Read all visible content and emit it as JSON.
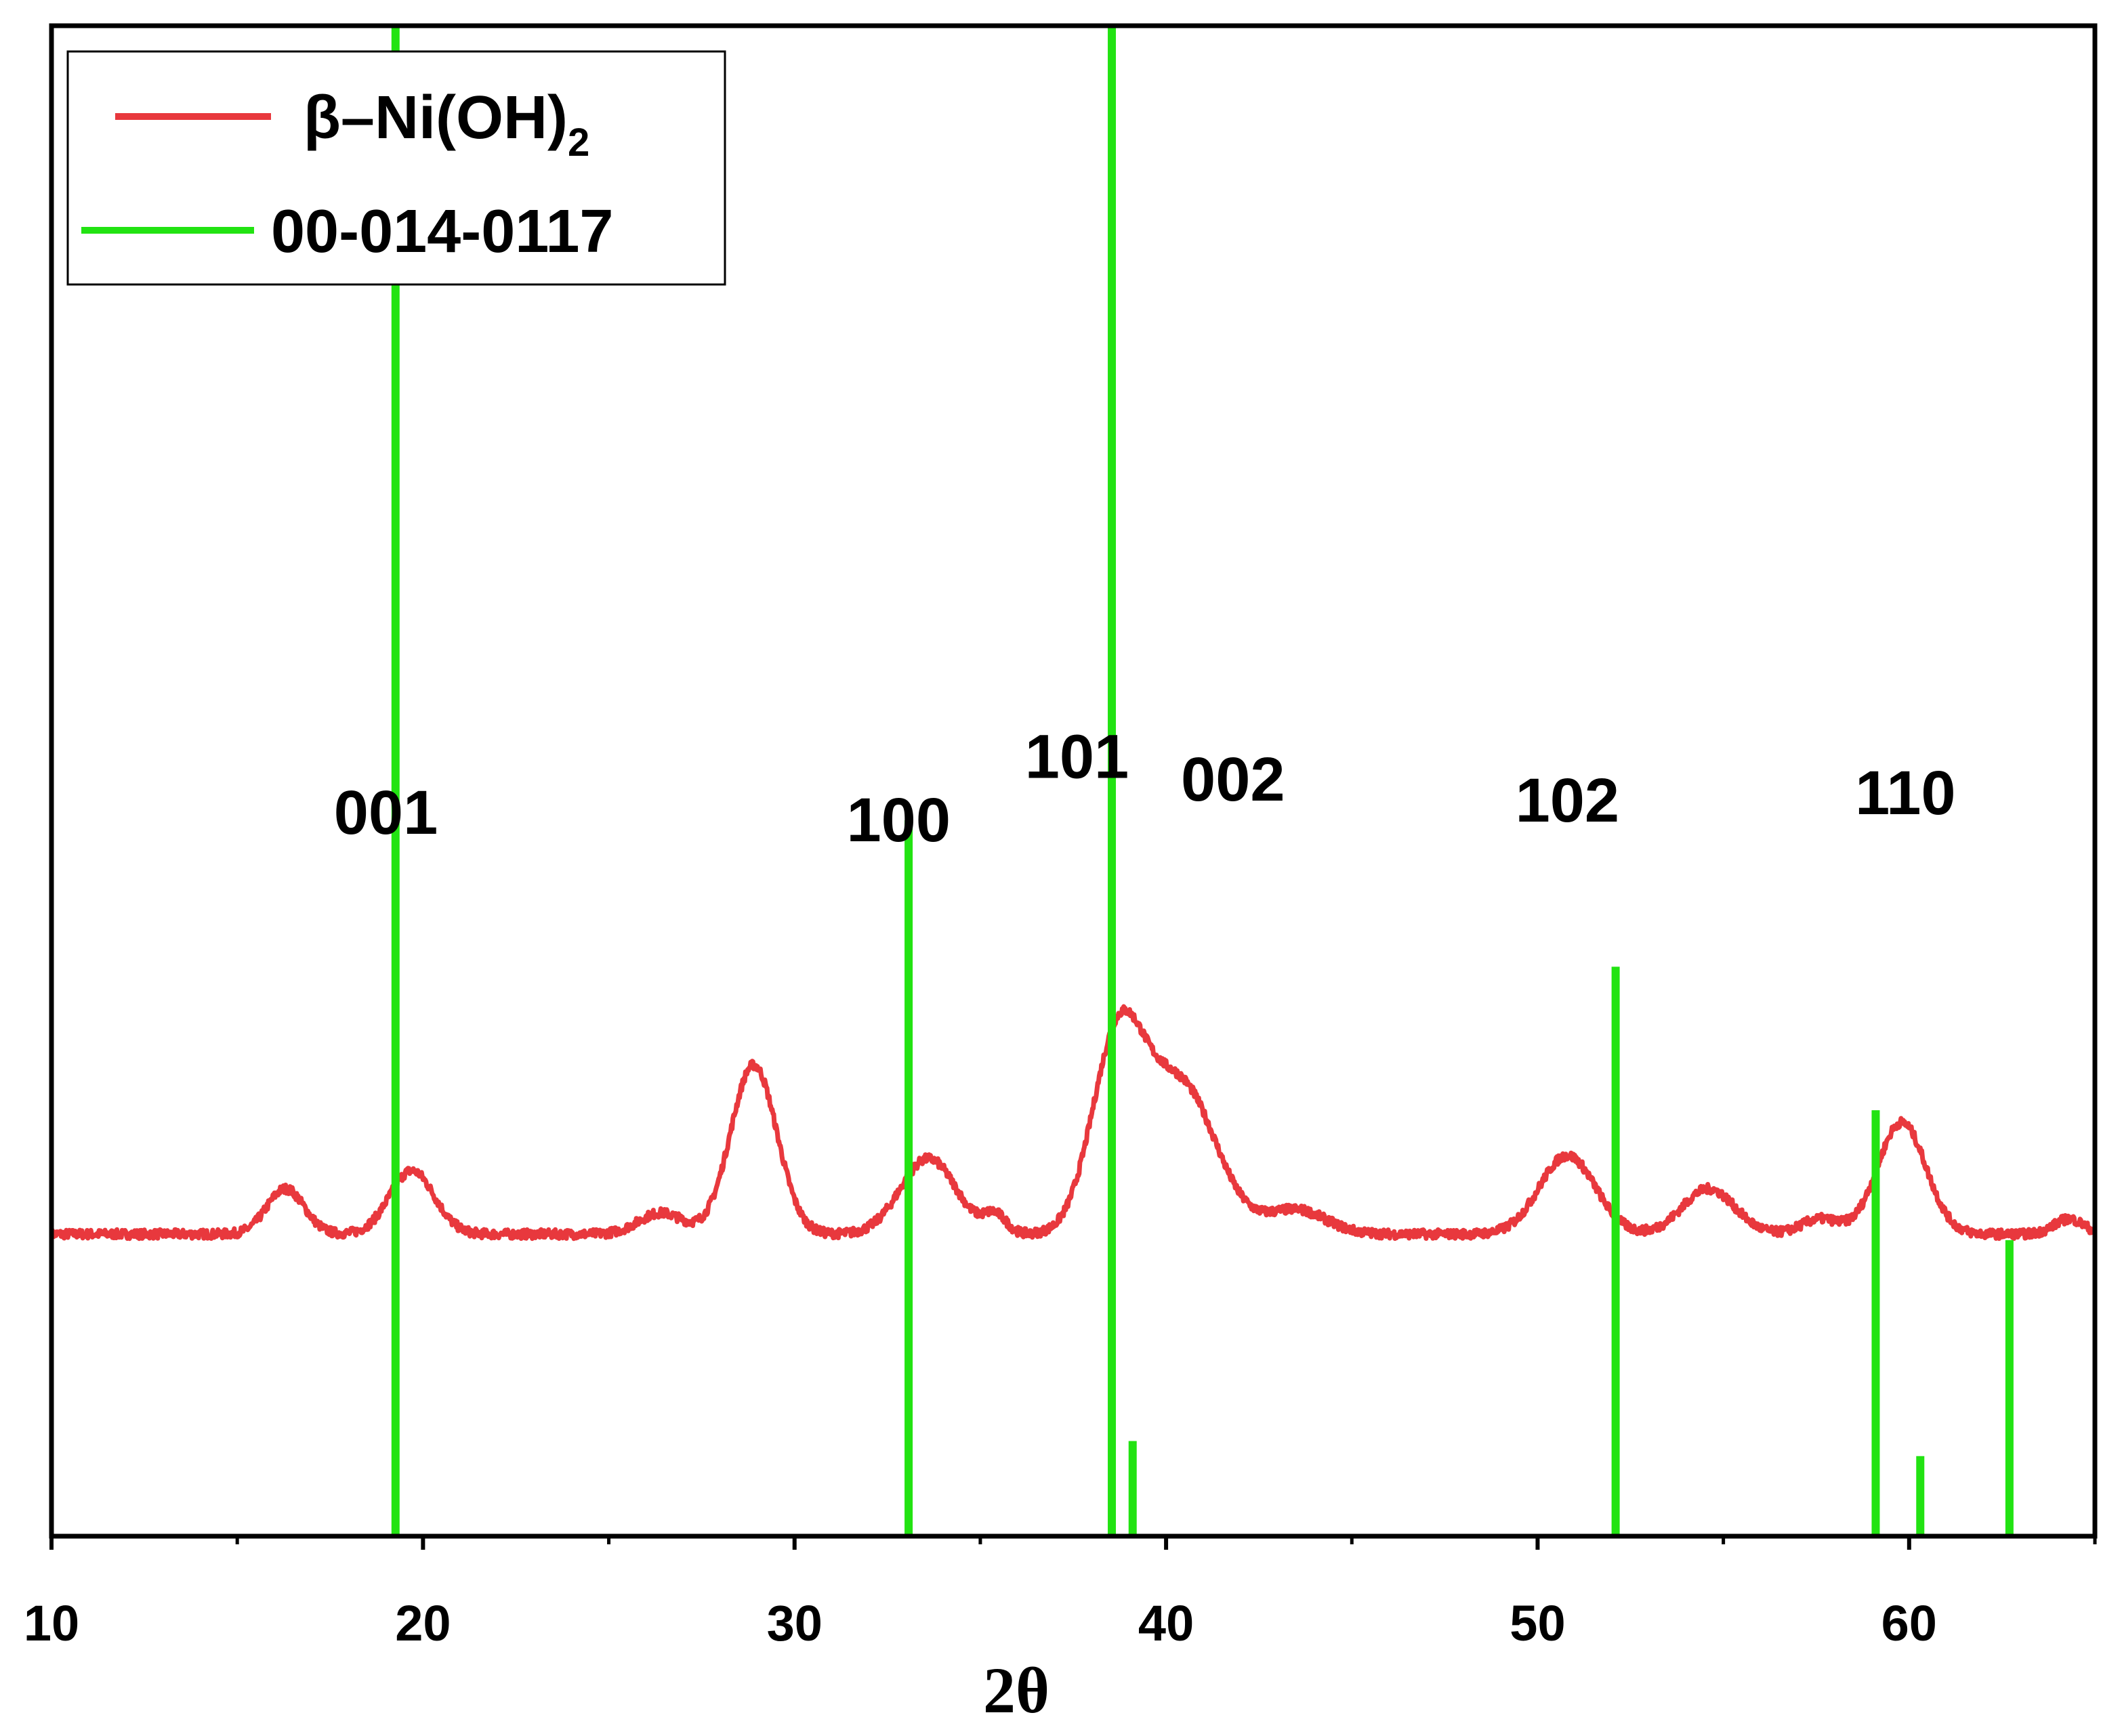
{
  "chart_data": {
    "type": "line",
    "xlabel": "2θ",
    "ylabel": "",
    "xlim": [
      10,
      65
    ],
    "x_ticks": [
      10,
      20,
      30,
      40,
      50,
      60
    ],
    "x_minor_ticks": [
      15,
      25,
      35,
      45,
      55,
      65
    ],
    "y_ticks_visible": false,
    "grid": false,
    "legend": {
      "placement": "top-left",
      "entries": [
        {
          "label_main": "β–Ni(OH)",
          "label_sub": "2",
          "color": "#e8383d"
        },
        {
          "label_main": "00-014-0117",
          "label_sub": "",
          "color": "#22e312"
        }
      ]
    },
    "series": [
      {
        "name": "β–Ni(OH)2",
        "kind": "line",
        "color": "#e8383d",
        "noise_seed": 7,
        "baseline": 0.2,
        "peaks": [
          [
            16.3,
            0.03,
            0.5
          ],
          [
            19.7,
            0.042,
            0.6
          ],
          [
            26.4,
            0.014,
            0.6
          ],
          [
            28.9,
            0.112,
            0.62
          ],
          [
            33.6,
            0.05,
            0.75
          ],
          [
            35.4,
            0.012,
            0.3
          ],
          [
            38.7,
            0.125,
            0.7
          ],
          [
            40.4,
            0.098,
            0.95
          ],
          [
            43.5,
            0.016,
            0.8
          ],
          [
            50.8,
            0.052,
            0.75
          ],
          [
            54.6,
            0.03,
            0.7
          ],
          [
            57.6,
            0.01,
            0.5
          ],
          [
            59.8,
            0.074,
            0.65
          ],
          [
            64.3,
            0.01,
            0.4
          ]
        ]
      },
      {
        "name": "00-014-0117",
        "kind": "sticks",
        "color": "#22e312",
        "x": [
          19.26,
          33.07,
          38.54,
          39.1,
          52.1,
          59.1,
          60.3,
          62.7
        ],
        "y": [
          1.0,
          0.474,
          1.0,
          0.063,
          0.377,
          0.282,
          0.053,
          0.196
        ]
      }
    ],
    "peak_labels": [
      {
        "text": "001",
        "x": 19.0,
        "y": 0.465
      },
      {
        "text": "100",
        "x": 32.8,
        "y": 0.46
      },
      {
        "text": "101",
        "x": 37.6,
        "y": 0.502
      },
      {
        "text": "002",
        "x": 41.8,
        "y": 0.487
      },
      {
        "text": "102",
        "x": 50.8,
        "y": 0.473
      },
      {
        "text": "110",
        "x": 59.9,
        "y": 0.478
      }
    ]
  }
}
